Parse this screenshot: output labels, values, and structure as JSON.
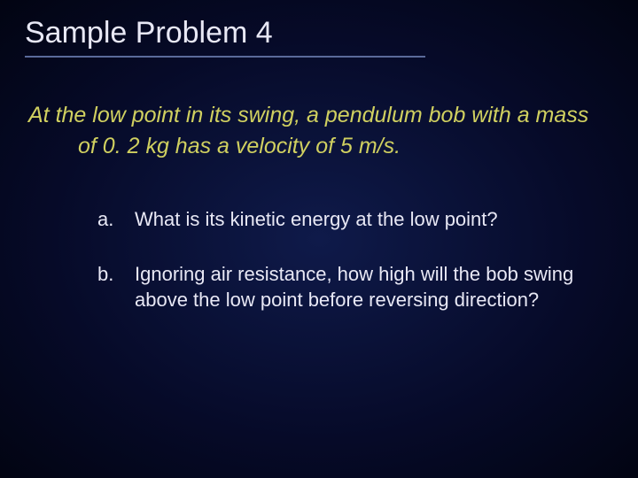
{
  "slide": {
    "title": "Sample Problem 4",
    "title_underline_color": "#5a6a9a",
    "background": {
      "gradient_center": "#0f1a4a",
      "gradient_mid": "#060a28",
      "gradient_edge": "#020412"
    },
    "problem_statement": {
      "text": "At the low point in its swing, a pendulum bob with a mass of 0. 2 kg has a velocity of 5 m/s.",
      "color": "#d0d060",
      "font_style": "italic",
      "font_size_pt": 19
    },
    "questions": [
      {
        "letter": "a.",
        "text": "What is its kinetic energy at the low point?"
      },
      {
        "letter": "b.",
        "text": "Ignoring air resistance, how high will the bob swing above the low point before reversing direction?"
      }
    ],
    "question_color": "#e8e8f5",
    "question_font_size_pt": 17
  }
}
